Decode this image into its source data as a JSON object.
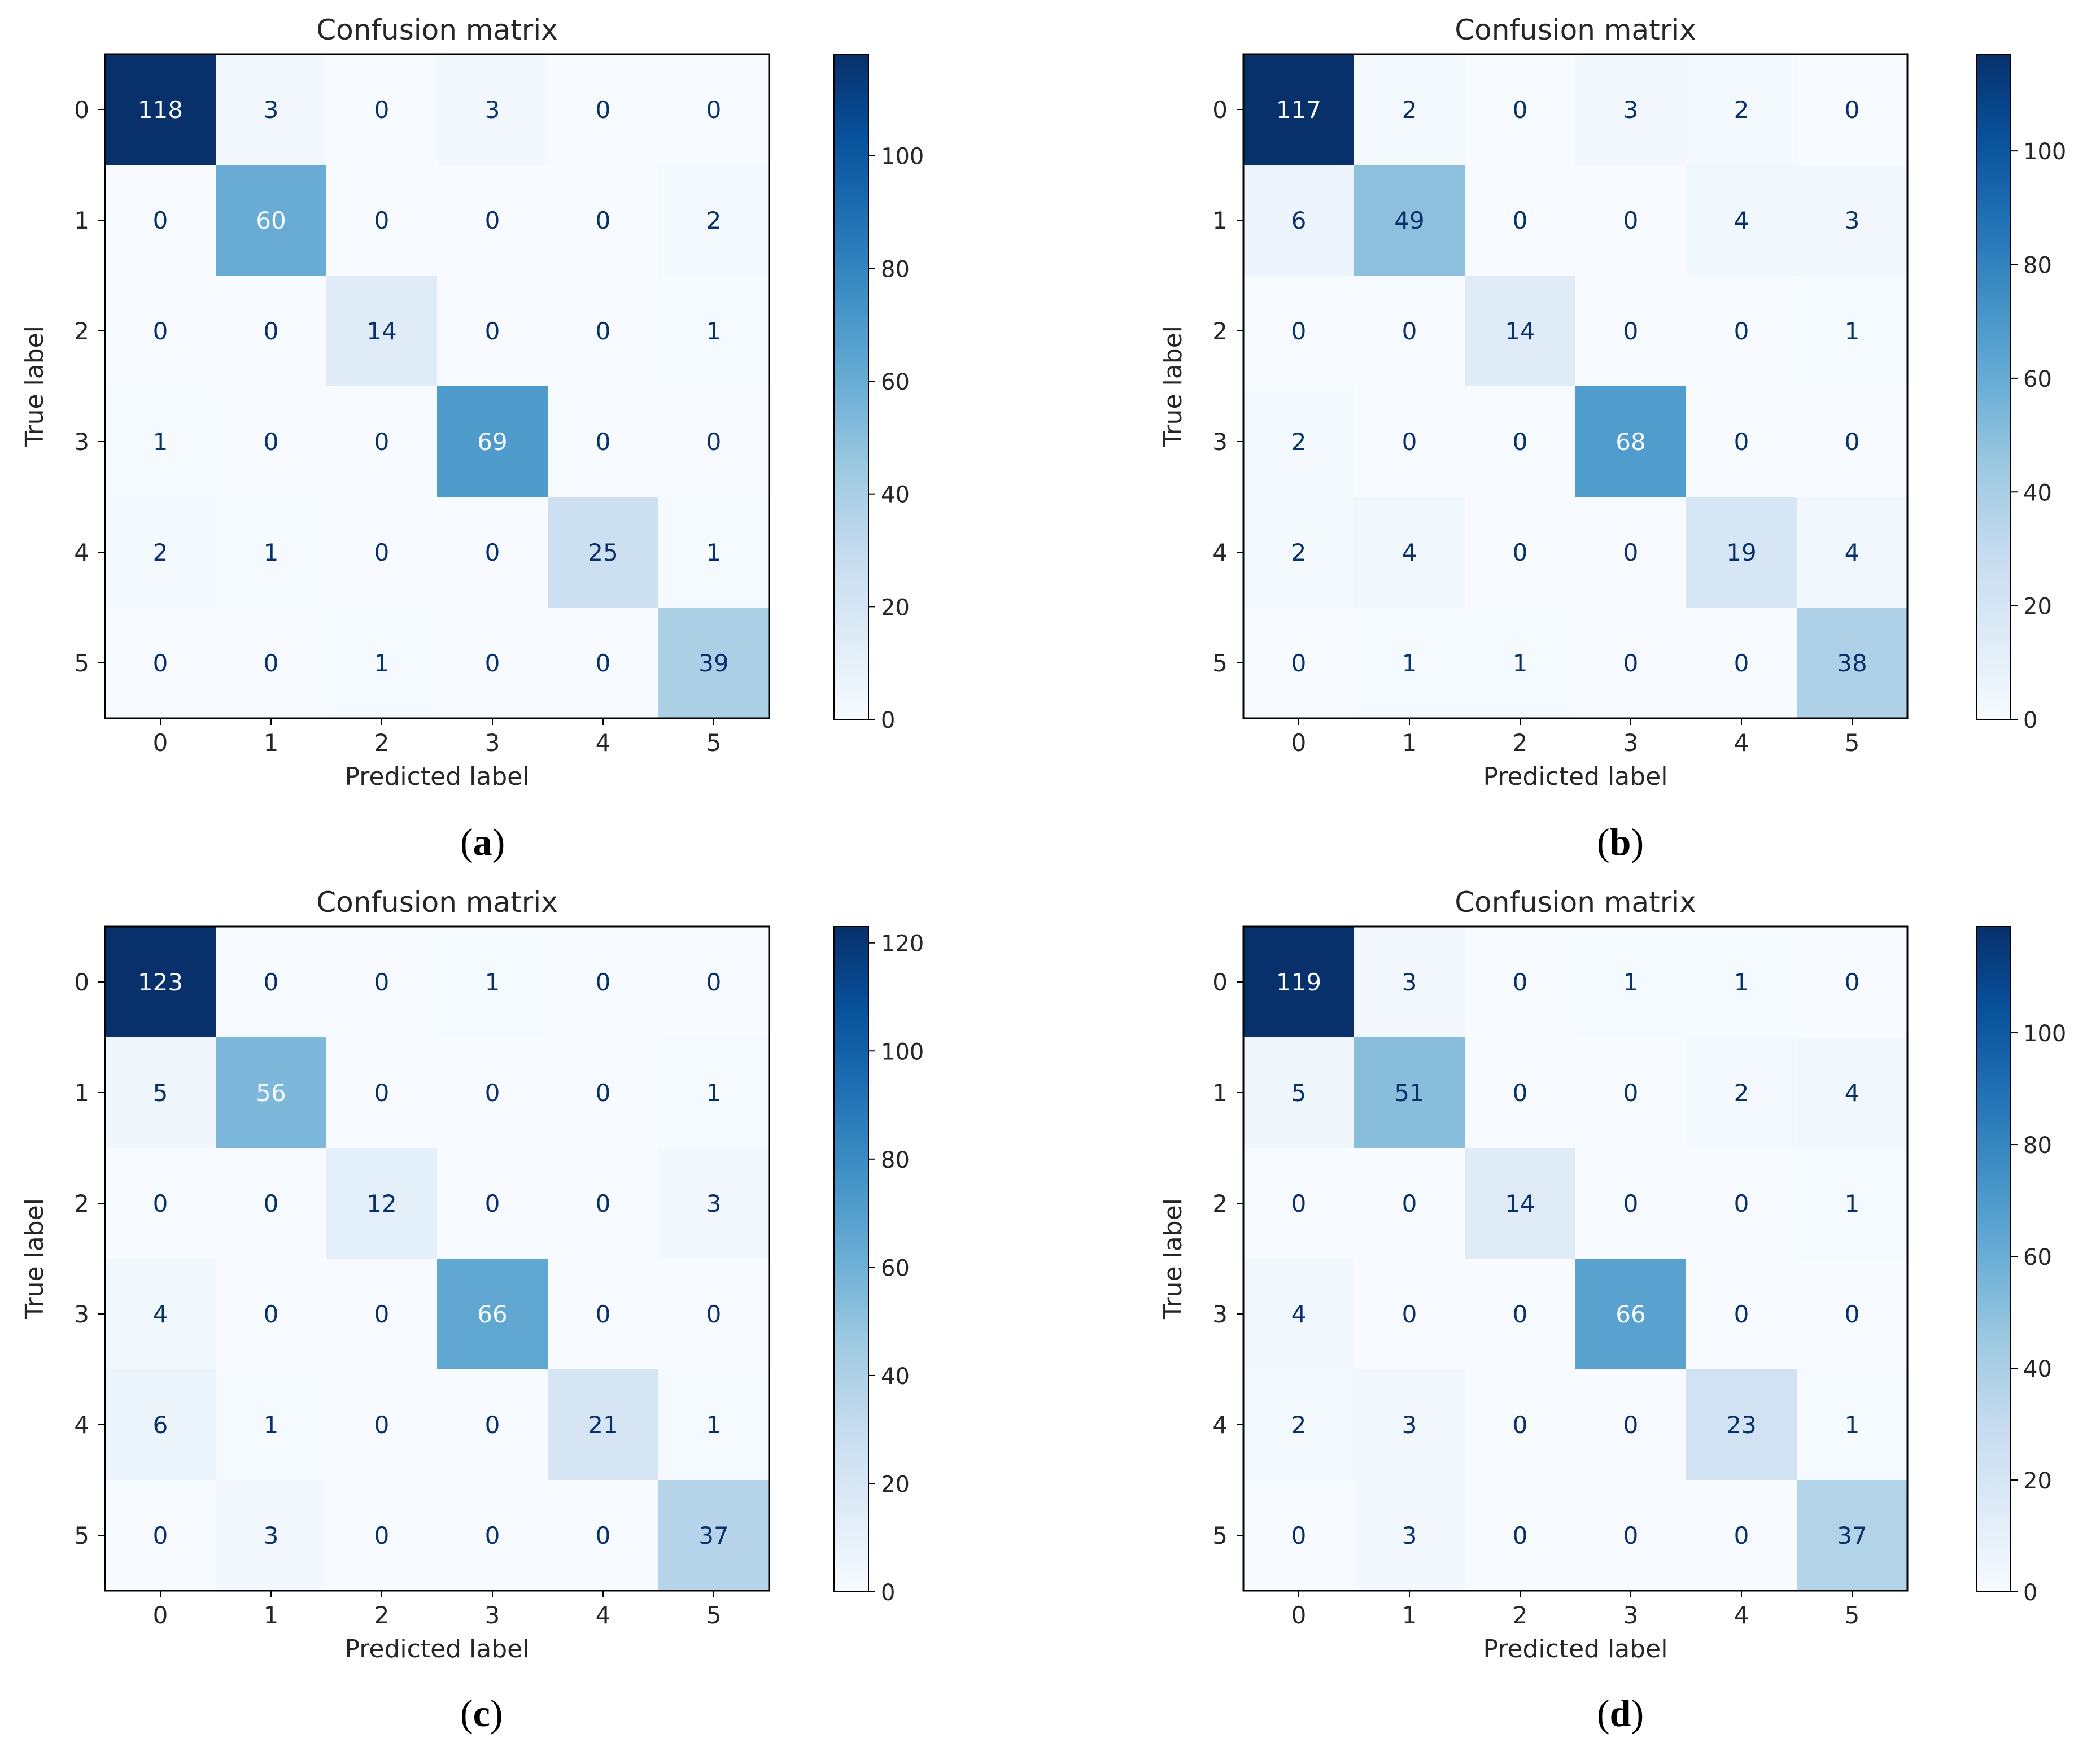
{
  "figure": {
    "panels": [
      "a",
      "b",
      "c",
      "d"
    ]
  },
  "chart_data": [
    {
      "panel": "a",
      "type": "heatmap",
      "title": "Confusion matrix",
      "xlabel": "Predicted label",
      "ylabel": "True label",
      "x_ticks": [
        "0",
        "1",
        "2",
        "3",
        "4",
        "5"
      ],
      "y_ticks": [
        "0",
        "1",
        "2",
        "3",
        "4",
        "5"
      ],
      "matrix": [
        [
          118,
          3,
          0,
          3,
          0,
          0
        ],
        [
          0,
          60,
          0,
          0,
          0,
          2
        ],
        [
          0,
          0,
          14,
          0,
          0,
          1
        ],
        [
          1,
          0,
          0,
          69,
          0,
          0
        ],
        [
          2,
          1,
          0,
          0,
          25,
          1
        ],
        [
          0,
          0,
          1,
          0,
          0,
          39
        ]
      ],
      "colormap": "Blues",
      "colorbar": {
        "min": 0,
        "max": 118,
        "ticks": [
          0,
          20,
          40,
          60,
          80,
          100
        ]
      }
    },
    {
      "panel": "b",
      "type": "heatmap",
      "title": "Confusion matrix",
      "xlabel": "Predicted label",
      "ylabel": "True label",
      "x_ticks": [
        "0",
        "1",
        "2",
        "3",
        "4",
        "5"
      ],
      "y_ticks": [
        "0",
        "1",
        "2",
        "3",
        "4",
        "5"
      ],
      "matrix": [
        [
          117,
          2,
          0,
          3,
          2,
          0
        ],
        [
          6,
          49,
          0,
          0,
          4,
          3
        ],
        [
          0,
          0,
          14,
          0,
          0,
          1
        ],
        [
          2,
          0,
          0,
          68,
          0,
          0
        ],
        [
          2,
          4,
          0,
          0,
          19,
          4
        ],
        [
          0,
          1,
          1,
          0,
          0,
          38
        ]
      ],
      "colormap": "Blues",
      "colorbar": {
        "min": 0,
        "max": 117,
        "ticks": [
          0,
          20,
          40,
          60,
          80,
          100
        ]
      }
    },
    {
      "panel": "c",
      "type": "heatmap",
      "title": "Confusion matrix",
      "xlabel": "Predicted label",
      "ylabel": "True label",
      "x_ticks": [
        "0",
        "1",
        "2",
        "3",
        "4",
        "5"
      ],
      "y_ticks": [
        "0",
        "1",
        "2",
        "3",
        "4",
        "5"
      ],
      "matrix": [
        [
          123,
          0,
          0,
          1,
          0,
          0
        ],
        [
          5,
          56,
          0,
          0,
          0,
          1
        ],
        [
          0,
          0,
          12,
          0,
          0,
          3
        ],
        [
          4,
          0,
          0,
          66,
          0,
          0
        ],
        [
          6,
          1,
          0,
          0,
          21,
          1
        ],
        [
          0,
          3,
          0,
          0,
          0,
          37
        ]
      ],
      "colormap": "Blues",
      "colorbar": {
        "min": 0,
        "max": 123,
        "ticks": [
          0,
          20,
          40,
          60,
          80,
          100,
          120
        ]
      }
    },
    {
      "panel": "d",
      "type": "heatmap",
      "title": "Confusion matrix",
      "xlabel": "Predicted label",
      "ylabel": "True label",
      "x_ticks": [
        "0",
        "1",
        "2",
        "3",
        "4",
        "5"
      ],
      "y_ticks": [
        "0",
        "1",
        "2",
        "3",
        "4",
        "5"
      ],
      "matrix": [
        [
          119,
          3,
          0,
          1,
          1,
          0
        ],
        [
          5,
          51,
          0,
          0,
          2,
          4
        ],
        [
          0,
          0,
          14,
          0,
          0,
          1
        ],
        [
          4,
          0,
          0,
          66,
          0,
          0
        ],
        [
          2,
          3,
          0,
          0,
          23,
          1
        ],
        [
          0,
          3,
          0,
          0,
          0,
          37
        ]
      ],
      "colormap": "Blues",
      "colorbar": {
        "min": 0,
        "max": 119,
        "ticks": [
          0,
          20,
          40,
          60,
          80,
          100
        ]
      }
    }
  ]
}
